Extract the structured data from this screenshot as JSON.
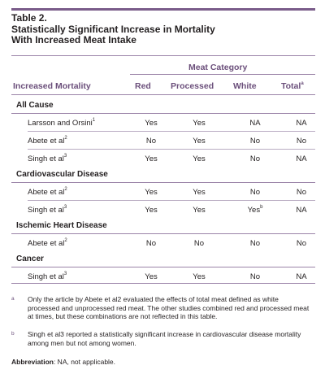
{
  "title_lines": [
    "Table 2.",
    "Statistically Significant Increase in Mortality",
    "With Increased Meat Intake"
  ],
  "meat_category": "Meat Category",
  "columns": {
    "increased_mortality": "Increased Mortality",
    "red": "Red",
    "processed": "Processed",
    "white": "White",
    "total": "Total",
    "total_sup": "a"
  },
  "sections": [
    {
      "name": "All Cause",
      "rows": [
        {
          "study": "Larsson and Orsini",
          "sup": "1",
          "red": "Yes",
          "processed": "Yes",
          "white": "NA",
          "white_sup": "",
          "total": "NA"
        },
        {
          "study": "Abete et al",
          "sup": "2",
          "red": "No",
          "processed": "Yes",
          "white": "No",
          "white_sup": "",
          "total": "No"
        },
        {
          "study": "Singh et al",
          "sup": "3",
          "red": "Yes",
          "processed": "Yes",
          "white": "No",
          "white_sup": "",
          "total": "NA"
        }
      ]
    },
    {
      "name": "Cardiovascular Disease",
      "rows": [
        {
          "study": "Abete et al",
          "sup": "2",
          "red": "Yes",
          "processed": "Yes",
          "white": "No",
          "white_sup": "",
          "total": "No"
        },
        {
          "study": "Singh et al",
          "sup": "3",
          "red": "Yes",
          "processed": "Yes",
          "white": "Yes",
          "white_sup": "b",
          "total": "NA"
        }
      ]
    },
    {
      "name": "Ischemic Heart Disease",
      "rows": [
        {
          "study": "Abete et al",
          "sup": "2",
          "red": "No",
          "processed": "No",
          "white": "No",
          "white_sup": "",
          "total": "No"
        }
      ]
    },
    {
      "name": "Cancer",
      "rows": [
        {
          "study": "Singh et al",
          "sup": "3",
          "red": "Yes",
          "processed": "Yes",
          "white": "No",
          "white_sup": "",
          "total": "NA"
        }
      ]
    }
  ],
  "footnotes": {
    "a_mark": "a",
    "a_text": "Only the article by Abete et al2 evaluated the effects of total meat defined as white processed and unprocessed red meat. The other studies combined red and processed meat at times, but these combinations are not reflected in this table.",
    "b_mark": "b",
    "b_text": "Singh et al3 reported a statistically significant increase in cardiovascular disease mortality among men but not among women."
  },
  "abbreviation": {
    "label": "Abbreviation",
    "text": ": NA, not applicable."
  }
}
